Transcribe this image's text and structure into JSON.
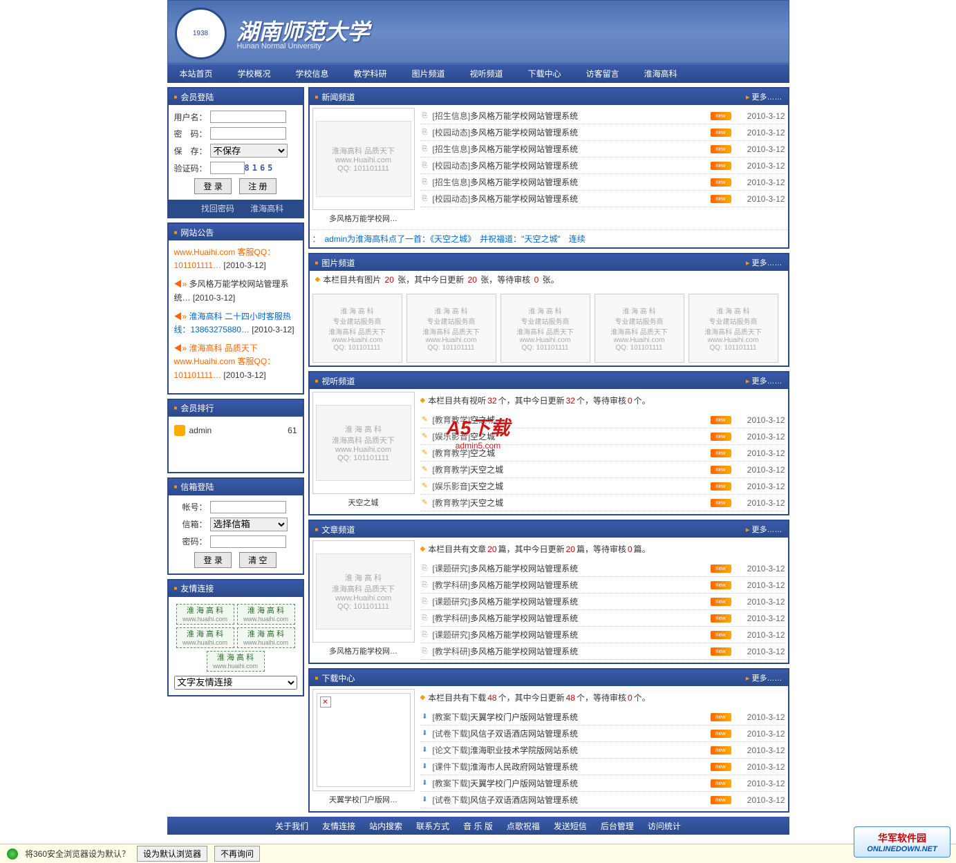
{
  "banner": {
    "logo_text": "1938",
    "title": "湖南师范大学",
    "subtitle": "Hunan Normal University"
  },
  "nav": [
    "本站首页",
    "学校概况",
    "学校信息",
    "教学科研",
    "图片频道",
    "视听频道",
    "下载中心",
    "访客留言",
    "淮海高科"
  ],
  "login": {
    "header": "会员登陆",
    "user_label": "用户名：",
    "pass_label": "密　码：",
    "save_label": "保　存：",
    "save_option": "不保存",
    "captcha_label": "验证码：",
    "captcha_value": "8165",
    "btn_login": "登 录",
    "btn_register": "注 册",
    "link_forgot": "找回密码",
    "link_huaihai": "淮海高科"
  },
  "announce": {
    "header": "网站公告",
    "items": [
      {
        "prefix": "www.Huaihi.com 客服QQ：",
        "num": "101101111",
        "date": "[2010-3-12]",
        "color": "orange"
      },
      {
        "prefix": "多风格万能学校网站管理系统",
        "date": "[2010-3-12]",
        "color": "black",
        "speaker": true
      },
      {
        "prefix": "淮海高科 二十四小时客服热线：",
        "num": "13863275880",
        "date": "[2010-3-12]",
        "color": "blue",
        "speaker": true
      },
      {
        "prefix": "淮海高科 品质天下 www.Huaihi.com 客服QQ：",
        "num": "101101111",
        "date": "[2010-3-12]",
        "color": "orange",
        "speaker": true
      }
    ]
  },
  "rank": {
    "header": "会员排行",
    "items": [
      {
        "name": "admin",
        "count": "61"
      }
    ]
  },
  "mailbox": {
    "header": "信箱登陆",
    "account_label": "帐号：",
    "box_label": "信箱：",
    "box_option": "选择信箱",
    "pass_label": "密码：",
    "btn_login": "登 录",
    "btn_clear": "清 空"
  },
  "friend": {
    "header": "友情连接",
    "items": [
      "淮 海 高 科",
      "淮 海 高 科",
      "淮 海 高 科",
      "淮 海 高 科",
      "淮 海 高 科"
    ],
    "sub": "www.huaihi.com",
    "select": "文字友情连接"
  },
  "news": {
    "header": "新闻频道",
    "more": "更多……",
    "thumb_caption": "多风格万能学校网…",
    "thumb_lines": [
      "淮海高科 品质天下",
      "www.Huaihi.com",
      "QQ: 101101111"
    ],
    "rows": [
      {
        "cat": "[招生信息]",
        "title": "多风格万能学校网站管理系统",
        "date": "2010-3-12"
      },
      {
        "cat": "[校园动态]",
        "title": "多风格万能学校网站管理系统",
        "date": "2010-3-12"
      },
      {
        "cat": "[招生信息]",
        "title": "多风格万能学校网站管理系统",
        "date": "2010-3-12"
      },
      {
        "cat": "[校园动态]",
        "title": "多风格万能学校网站管理系统",
        "date": "2010-3-12"
      },
      {
        "cat": "[招生信息]",
        "title": "多风格万能学校网站管理系统",
        "date": "2010-3-12"
      },
      {
        "cat": "[校园动态]",
        "title": "多风格万能学校网站管理系统",
        "date": "2010-3-12"
      }
    ],
    "marquee": "：　admin为淮海高科点了一首：《天空之城》　并祝福道：\"天空之城\"　连续"
  },
  "pic": {
    "header": "图片频道",
    "more": "更多……",
    "info_prefix": "本栏目共有图片 ",
    "info_n1": "20",
    "info_mid1": " 张，其中今日更新 ",
    "info_n2": "20",
    "info_mid2": " 张，等待审核 ",
    "info_n3": "0",
    "info_suffix": " 张。",
    "thumb_lines": [
      "淮 海 高 科",
      "专业建站服务商",
      "淮海高科 品质天下",
      "www.Huaihi.com",
      "QQ: 101101111"
    ]
  },
  "video": {
    "header": "视听频道",
    "more": "更多……",
    "thumb_caption": "天空之城",
    "thumb_lines": [
      "淮 海 高 科",
      "淮海高科 品质天下",
      "www.Huaihi.com",
      "QQ: 101101111"
    ],
    "info_prefix": "本栏目共有视听 ",
    "info_n1": "32",
    "info_mid1": " 个，其中今日更新 ",
    "info_n2": "32",
    "info_mid2": " 个，等待审核 ",
    "info_n3": "0",
    "info_suffix": " 个。",
    "rows": [
      {
        "cat": "[教育教学]",
        "title": "空之城",
        "date": "2010-3-12"
      },
      {
        "cat": "[娱乐影音]",
        "title": "空之城",
        "date": "2010-3-12"
      },
      {
        "cat": "[教育教学]",
        "title": "空之城",
        "date": "2010-3-12"
      },
      {
        "cat": "[教育教学]",
        "title": "天空之城",
        "date": "2010-3-12"
      },
      {
        "cat": "[娱乐影音]",
        "title": "天空之城",
        "date": "2010-3-12"
      },
      {
        "cat": "[教育教学]",
        "title": "天空之城",
        "date": "2010-3-12"
      }
    ]
  },
  "article": {
    "header": "文章频道",
    "more": "更多……",
    "thumb_caption": "多风格万能学校网…",
    "thumb_lines": [
      "淮 海 高 科",
      "淮海高科 品质天下",
      "www.Huaihi.com",
      "QQ: 101101111"
    ],
    "info_prefix": "本栏目共有文章 ",
    "info_n1": "20",
    "info_mid1": " 篇，其中今日更新 ",
    "info_n2": "20",
    "info_mid2": " 篇，等待审核 ",
    "info_n3": "0",
    "info_suffix": " 篇。",
    "rows": [
      {
        "cat": "[课题研究]",
        "title": "多风格万能学校网站管理系统",
        "date": "2010-3-12"
      },
      {
        "cat": "[教学科研]",
        "title": "多风格万能学校网站管理系统",
        "date": "2010-3-12"
      },
      {
        "cat": "[课题研究]",
        "title": "多风格万能学校网站管理系统",
        "date": "2010-3-12"
      },
      {
        "cat": "[教学科研]",
        "title": "多风格万能学校网站管理系统",
        "date": "2010-3-12"
      },
      {
        "cat": "[课题研究]",
        "title": "多风格万能学校网站管理系统",
        "date": "2010-3-12"
      },
      {
        "cat": "[教学科研]",
        "title": "多风格万能学校网站管理系统",
        "date": "2010-3-12"
      }
    ]
  },
  "download": {
    "header": "下载中心",
    "more": "更多……",
    "thumb_caption": "天翼学校门户版网…",
    "info_prefix": "本栏目共有下载 ",
    "info_n1": "48",
    "info_mid1": " 个，其中今日更新 ",
    "info_n2": "48",
    "info_mid2": " 个，等待审核 ",
    "info_n3": "0",
    "info_suffix": " 个。",
    "rows": [
      {
        "cat": "[教案下载]",
        "title": "天翼学校门户版网站管理系统",
        "date": "2010-3-12"
      },
      {
        "cat": "[试卷下载]",
        "title": "风信子双语酒店网站管理系统",
        "date": "2010-3-12"
      },
      {
        "cat": "[论文下载]",
        "title": "淮海职业技术学院版网站系统",
        "date": "2010-3-12"
      },
      {
        "cat": "[课件下载]",
        "title": "淮海市人民政府网站管理系统",
        "date": "2010-3-12"
      },
      {
        "cat": "[教案下载]",
        "title": "天翼学校门户版网站管理系统",
        "date": "2010-3-12"
      },
      {
        "cat": "[试卷下载]",
        "title": "风信子双语酒店网站管理系统",
        "date": "2010-3-12"
      }
    ]
  },
  "footer_nav": [
    "关于我们",
    "友情连接",
    "站内搜索",
    "联系方式",
    "音 乐 版",
    "点歌祝福",
    "发送短信",
    "后台管理",
    "访问统计"
  ],
  "watermark": {
    "big": "A5下载",
    "small": "admin5.com"
  },
  "bottom_bar": {
    "text": "将360安全浏览器设为默认？",
    "btn1": "设为默认浏览器",
    "btn2": "不再询问"
  },
  "corner": {
    "big": "华军软件园",
    "small": "ONLINEDOWN.NET"
  }
}
